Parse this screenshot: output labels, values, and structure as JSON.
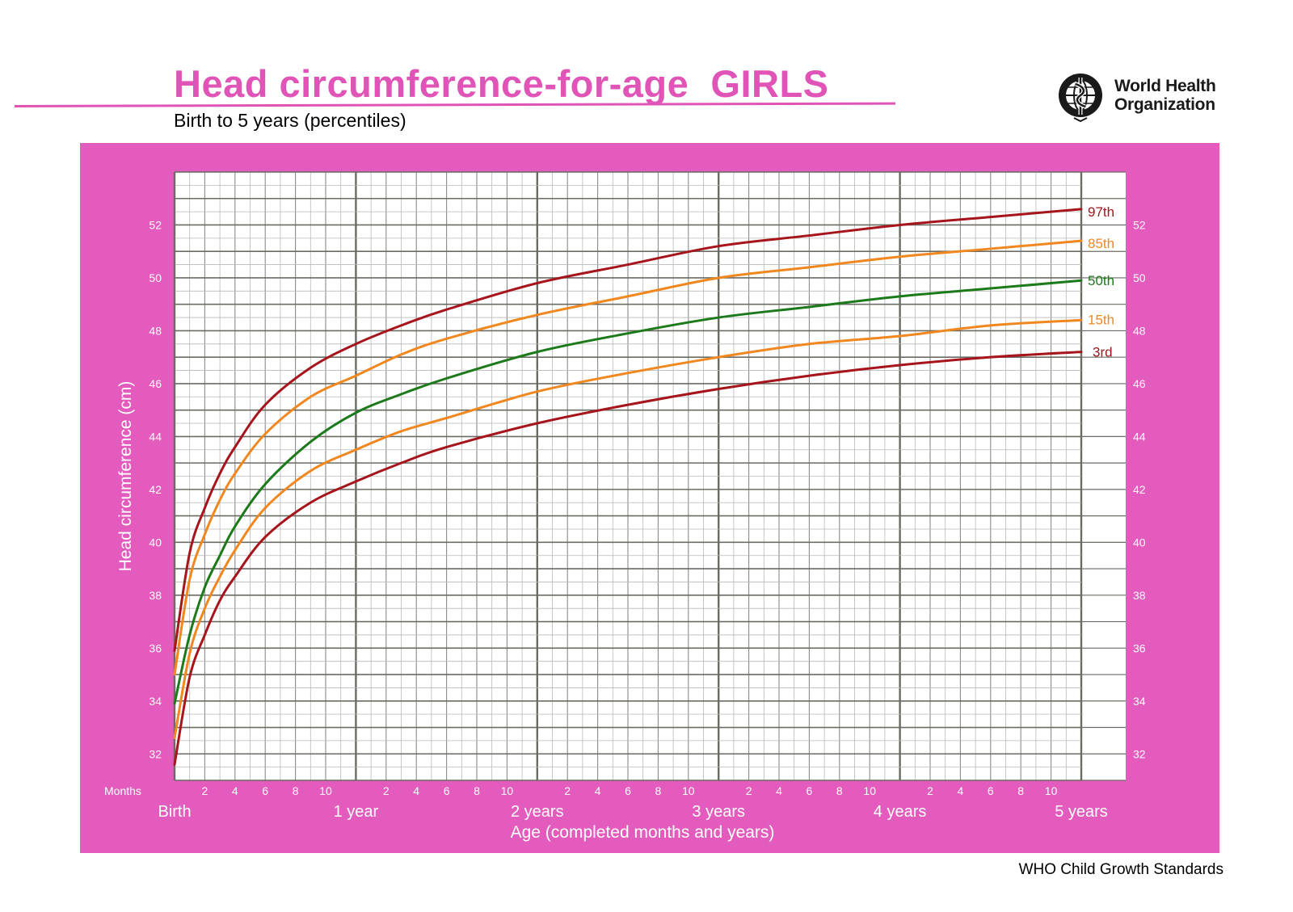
{
  "header": {
    "title": "Head circumference-for-age  GIRLS",
    "subtitle": "Birth to 5 years (percentiles)",
    "organization_line1": "World Health",
    "organization_line2": "Organization",
    "logo_icon": "who-emblem-icon"
  },
  "footer": {
    "source": "WHO Child Growth Standards"
  },
  "colors": {
    "brand_pink": "#e25bbd",
    "title_pink": "#e054b8",
    "p3": "#a6141c",
    "p15": "#f0871f",
    "p50": "#1c7a1a",
    "p85": "#f0871f",
    "p97": "#a6141c"
  },
  "chart_data": {
    "type": "line",
    "title": "Head circumference-for-age  GIRLS",
    "subtitle": "Birth to 5 years (percentiles)",
    "ylabel": "Head circumference (cm)",
    "xlabel": "Age (completed months and years)",
    "x_unit_label": "Months",
    "x_year_labels": [
      "Birth",
      "1 year",
      "2 years",
      "3 years",
      "4 years",
      "5 years"
    ],
    "x_month_ticks": [
      "2",
      "4",
      "6",
      "8",
      "10"
    ],
    "xlim": [
      0,
      60
    ],
    "ylim": [
      31,
      54
    ],
    "yticks": [
      32,
      34,
      36,
      38,
      40,
      42,
      44,
      46,
      48,
      50,
      52
    ],
    "grid": true,
    "legend": "line-end labels at right",
    "x": [
      0,
      1,
      2,
      3,
      4,
      6,
      9,
      12,
      15,
      18,
      24,
      30,
      36,
      42,
      48,
      54,
      60
    ],
    "series": [
      {
        "name": "97th",
        "values": [
          35.9,
          39.6,
          41.3,
          42.6,
          43.6,
          45.2,
          46.6,
          47.5,
          48.2,
          48.8,
          49.8,
          50.5,
          51.2,
          51.6,
          52.0,
          52.3,
          52.6
        ]
      },
      {
        "name": "85th",
        "values": [
          35.0,
          38.6,
          40.3,
          41.6,
          42.6,
          44.1,
          45.5,
          46.3,
          47.1,
          47.7,
          48.6,
          49.3,
          50.0,
          50.4,
          50.8,
          51.1,
          51.4
        ]
      },
      {
        "name": "50th",
        "values": [
          33.9,
          36.5,
          38.3,
          39.5,
          40.6,
          42.2,
          43.8,
          44.9,
          45.6,
          46.2,
          47.2,
          47.9,
          48.5,
          48.9,
          49.3,
          49.6,
          49.9
        ]
      },
      {
        "name": "15th",
        "values": [
          32.6,
          35.8,
          37.5,
          38.7,
          39.7,
          41.3,
          42.7,
          43.5,
          44.2,
          44.7,
          45.7,
          46.4,
          47.0,
          47.5,
          47.8,
          48.2,
          48.4
        ]
      },
      {
        "name": "3rd",
        "values": [
          31.6,
          34.9,
          36.5,
          37.8,
          38.7,
          40.2,
          41.5,
          42.3,
          43.0,
          43.6,
          44.5,
          45.2,
          45.8,
          46.3,
          46.7,
          47.0,
          47.2
        ]
      }
    ]
  }
}
